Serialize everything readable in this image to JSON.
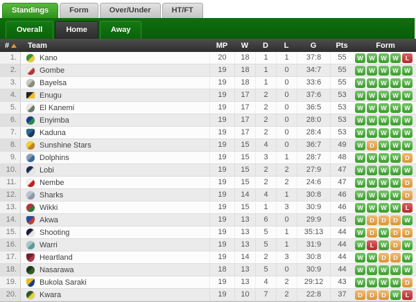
{
  "tabs": {
    "main": [
      {
        "label": "Standings",
        "active": true
      },
      {
        "label": "Form",
        "active": false
      },
      {
        "label": "Over/Under",
        "active": false
      },
      {
        "label": "HT/FT",
        "active": false
      }
    ],
    "sub": [
      {
        "label": "Overall",
        "active": false
      },
      {
        "label": "Home",
        "active": true
      },
      {
        "label": "Away",
        "active": false
      }
    ]
  },
  "icons": {
    "sort_ascending": "triangle-up"
  },
  "colors": {
    "win": "#3fae2e",
    "draw": "#f0a43c",
    "loss": "#cb2b2b",
    "active_tab_green": "#3f9e2d",
    "subnav_green": "#0b6b0b",
    "header_dark": "#3a3a3a",
    "sort_arrow_orange": "#e09a36"
  },
  "table": {
    "headers": {
      "rank": "#",
      "team": "Team",
      "mp": "MP",
      "w": "W",
      "d": "D",
      "l": "L",
      "g": "G",
      "pts": "Pts",
      "form": "Form"
    },
    "rows": [
      {
        "rank": "1.",
        "team": "Kano",
        "mp": 20,
        "w": 18,
        "d": 1,
        "l": 1,
        "g": "37:8",
        "pts": 55,
        "form": [
          "W",
          "W",
          "W",
          "W",
          "L"
        ],
        "logo": {
          "shape": "circle",
          "c1": "#3a8f2a",
          "c2": "#e8c93a"
        }
      },
      {
        "rank": "2.",
        "team": "Gombe",
        "mp": 19,
        "w": 18,
        "d": 1,
        "l": 0,
        "g": "34:7",
        "pts": 55,
        "form": [
          "W",
          "W",
          "W",
          "W",
          "W"
        ],
        "logo": {
          "shape": "circle",
          "c1": "#efeaea",
          "c2": "#b23434"
        }
      },
      {
        "rank": "3.",
        "team": "Bayelsa",
        "mp": 19,
        "w": 18,
        "d": 1,
        "l": 0,
        "g": "33:6",
        "pts": 55,
        "form": [
          "W",
          "W",
          "W",
          "W",
          "W"
        ],
        "logo": {
          "shape": "circle",
          "c1": "#c9c9b9",
          "c2": "#8a8a7a"
        }
      },
      {
        "rank": "4.",
        "team": "Enugu",
        "mp": 19,
        "w": 17,
        "d": 2,
        "l": 0,
        "g": "37:6",
        "pts": 53,
        "form": [
          "W",
          "W",
          "W",
          "W",
          "W"
        ],
        "logo": {
          "shape": "flag",
          "c1": "#222222",
          "c2": "#f0c020"
        }
      },
      {
        "rank": "5.",
        "team": "El Kanemi",
        "mp": 19,
        "w": 17,
        "d": 2,
        "l": 0,
        "g": "36:5",
        "pts": 53,
        "form": [
          "W",
          "W",
          "W",
          "W",
          "W"
        ],
        "logo": {
          "shape": "circle",
          "c1": "#e8e8e8",
          "c2": "#6a7a6a"
        }
      },
      {
        "rank": "6.",
        "team": "Enyimba",
        "mp": 19,
        "w": 17,
        "d": 2,
        "l": 0,
        "g": "28:0",
        "pts": 53,
        "form": [
          "W",
          "W",
          "W",
          "W",
          "W"
        ],
        "logo": {
          "shape": "circle",
          "c1": "#1a3a8a",
          "c2": "#2a8a4a"
        }
      },
      {
        "rank": "7.",
        "team": "Kaduna",
        "mp": 19,
        "w": 17,
        "d": 2,
        "l": 0,
        "g": "28:4",
        "pts": 53,
        "form": [
          "W",
          "W",
          "W",
          "W",
          "W"
        ],
        "logo": {
          "shape": "shield",
          "c1": "#2a6a8a",
          "c2": "#1a3a5a"
        }
      },
      {
        "rank": "8.",
        "team": "Sunshine Stars",
        "mp": 19,
        "w": 15,
        "d": 4,
        "l": 0,
        "g": "36:7",
        "pts": 49,
        "form": [
          "W",
          "D",
          "W",
          "W",
          "W"
        ],
        "logo": {
          "shape": "circle",
          "c1": "#f0d030",
          "c2": "#c08020"
        }
      },
      {
        "rank": "9.",
        "team": "Dolphins",
        "mp": 19,
        "w": 15,
        "d": 3,
        "l": 1,
        "g": "28:7",
        "pts": 48,
        "form": [
          "W",
          "W",
          "W",
          "W",
          "D"
        ],
        "logo": {
          "shape": "circle",
          "c1": "#8aa0b8",
          "c2": "#3a6a9a"
        }
      },
      {
        "rank": "10.",
        "team": "Lobi",
        "mp": 19,
        "w": 15,
        "d": 2,
        "l": 2,
        "g": "27:9",
        "pts": 47,
        "form": [
          "W",
          "W",
          "W",
          "W",
          "W"
        ],
        "logo": {
          "shape": "circle",
          "c1": "#1a2a5a",
          "c2": "#e8e8e8"
        }
      },
      {
        "rank": "11.",
        "team": "Nembe",
        "mp": 19,
        "w": 15,
        "d": 2,
        "l": 2,
        "g": "24:6",
        "pts": 47,
        "form": [
          "W",
          "W",
          "W",
          "W",
          "D"
        ],
        "logo": {
          "shape": "circle",
          "c1": "#f0f0f0",
          "c2": "#c02020"
        }
      },
      {
        "rank": "12.",
        "team": "Sharks",
        "mp": 19,
        "w": 14,
        "d": 4,
        "l": 1,
        "g": "30:8",
        "pts": 46,
        "form": [
          "W",
          "W",
          "W",
          "W",
          "D"
        ],
        "logo": {
          "shape": "circle",
          "c1": "#b8c4d0",
          "c2": "#8a98a8"
        }
      },
      {
        "rank": "13.",
        "team": "Wikki",
        "mp": 19,
        "w": 15,
        "d": 1,
        "l": 3,
        "g": "30:9",
        "pts": 46,
        "form": [
          "W",
          "W",
          "W",
          "W",
          "L"
        ],
        "logo": {
          "shape": "circle",
          "c1": "#c03030",
          "c2": "#2a7a3a"
        }
      },
      {
        "rank": "14.",
        "team": "Akwa",
        "mp": 19,
        "w": 13,
        "d": 6,
        "l": 0,
        "g": "29:9",
        "pts": 45,
        "form": [
          "W",
          "D",
          "D",
          "D",
          "W"
        ],
        "logo": {
          "shape": "shield",
          "c1": "#2a4a9a",
          "c2": "#c04030"
        }
      },
      {
        "rank": "15.",
        "team": "Shooting",
        "mp": 19,
        "w": 13,
        "d": 5,
        "l": 1,
        "g": "35:13",
        "pts": 44,
        "form": [
          "W",
          "D",
          "W",
          "D",
          "D"
        ],
        "logo": {
          "shape": "circle",
          "c1": "#1a1a3a",
          "c2": "#e8e8e8"
        }
      },
      {
        "rank": "16.",
        "team": "Warri",
        "mp": 19,
        "w": 13,
        "d": 5,
        "l": 1,
        "g": "31:9",
        "pts": 44,
        "form": [
          "W",
          "L",
          "W",
          "D",
          "W"
        ],
        "logo": {
          "shape": "circle",
          "c1": "#a8c8c8",
          "c2": "#5a9a9a"
        }
      },
      {
        "rank": "17.",
        "team": "Heartland",
        "mp": 19,
        "w": 14,
        "d": 2,
        "l": 3,
        "g": "30:8",
        "pts": 44,
        "form": [
          "W",
          "W",
          "D",
          "D",
          "W"
        ],
        "logo": {
          "shape": "shield",
          "c1": "#7a1a2a",
          "c2": "#a83a4a"
        }
      },
      {
        "rank": "18.",
        "team": "Nasarawa",
        "mp": 18,
        "w": 13,
        "d": 5,
        "l": 0,
        "g": "30:9",
        "pts": 44,
        "form": [
          "W",
          "W",
          "W",
          "W",
          "W"
        ],
        "logo": {
          "shape": "circle",
          "c1": "#1a3a1a",
          "c2": "#3a5a2a"
        }
      },
      {
        "rank": "19.",
        "team": "Bukola Saraki",
        "mp": 19,
        "w": 13,
        "d": 4,
        "l": 2,
        "g": "29:12",
        "pts": 43,
        "form": [
          "W",
          "W",
          "W",
          "W",
          "D"
        ],
        "logo": {
          "shape": "shield",
          "c1": "#e8c020",
          "c2": "#1a3a8a"
        }
      },
      {
        "rank": "20.",
        "team": "Kwara",
        "mp": 19,
        "w": 10,
        "d": 7,
        "l": 2,
        "g": "22:8",
        "pts": 37,
        "form": [
          "D",
          "D",
          "D",
          "W",
          "L"
        ],
        "logo": {
          "shape": "circle",
          "c1": "#2a5a2a",
          "c2": "#e8d040"
        }
      }
    ]
  }
}
